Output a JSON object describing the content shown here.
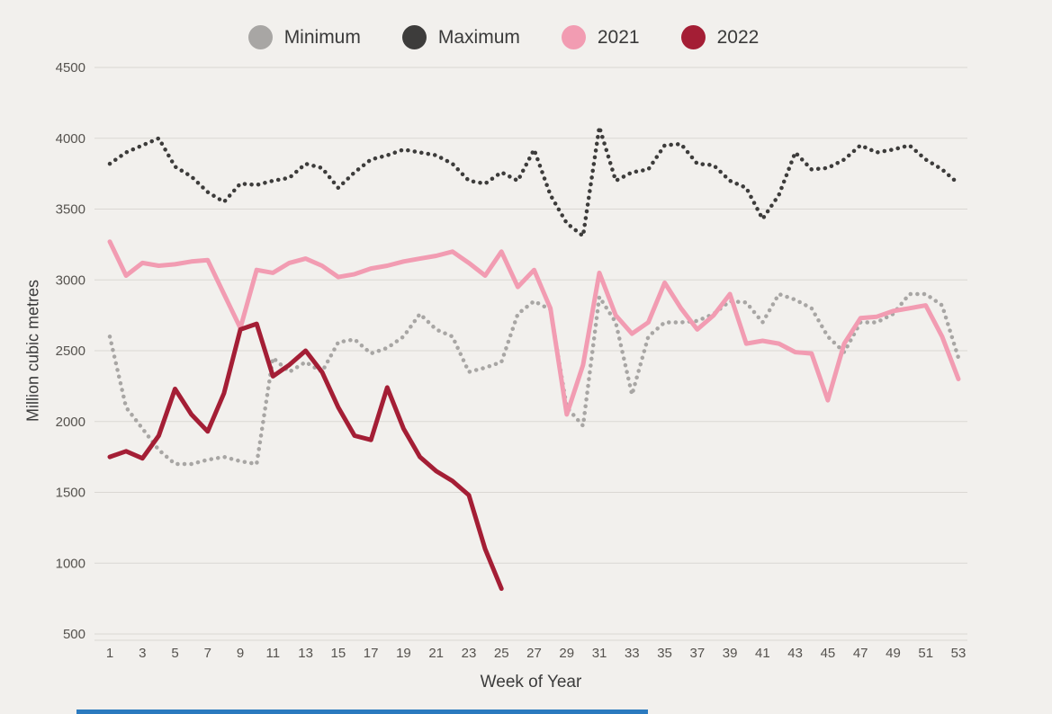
{
  "page": {
    "background": "#f2f0ed",
    "accent_bar_color": "#2b7abf"
  },
  "legend": {
    "items": [
      {
        "label": "Minimum",
        "color": "#a8a6a4"
      },
      {
        "label": "Maximum",
        "color": "#3d3c3b"
      },
      {
        "label": "2021",
        "color": "#f29cb2"
      },
      {
        "label": "2022",
        "color": "#a41e35"
      }
    ]
  },
  "chart_data": {
    "type": "line",
    "title": "",
    "xlabel": "Week of Year",
    "ylabel": "Million cubic metres",
    "ylim": [
      500,
      4500
    ],
    "y_ticks": [
      500,
      1000,
      1500,
      2000,
      2500,
      3000,
      3500,
      4000,
      4500
    ],
    "x_tick_labels": [
      1,
      3,
      5,
      7,
      9,
      11,
      13,
      15,
      17,
      19,
      21,
      23,
      25,
      27,
      29,
      31,
      33,
      35,
      37,
      39,
      41,
      43,
      45,
      47,
      49,
      51,
      53
    ],
    "grid": true,
    "grid_color": "#dad7d3",
    "legend_position": "top",
    "x": [
      1,
      2,
      3,
      4,
      5,
      6,
      7,
      8,
      9,
      10,
      11,
      12,
      13,
      14,
      15,
      16,
      17,
      18,
      19,
      20,
      21,
      22,
      23,
      24,
      25,
      26,
      27,
      28,
      29,
      30,
      31,
      32,
      33,
      34,
      35,
      36,
      37,
      38,
      39,
      40,
      41,
      42,
      43,
      44,
      45,
      46,
      47,
      48,
      49,
      50,
      51,
      52,
      53
    ],
    "series": [
      {
        "name": "Minimum",
        "color": "#a8a6a4",
        "style": "dotted",
        "values": [
          2600,
          2100,
          1950,
          1800,
          1700,
          1700,
          1730,
          1750,
          1720,
          1700,
          2450,
          2350,
          2420,
          2350,
          2560,
          2580,
          2480,
          2520,
          2600,
          2760,
          2650,
          2600,
          2350,
          2380,
          2420,
          2760,
          2850,
          2790,
          2100,
          1970,
          2880,
          2700,
          2190,
          2600,
          2700,
          2700,
          2710,
          2760,
          2850,
          2840,
          2700,
          2900,
          2860,
          2800,
          2600,
          2490,
          2700,
          2700,
          2760,
          2900,
          2900,
          2820,
          2450
        ]
      },
      {
        "name": "Maximum",
        "color": "#3d3c3b",
        "style": "dotted",
        "values": [
          3820,
          3900,
          3950,
          4000,
          3800,
          3730,
          3620,
          3550,
          3680,
          3670,
          3700,
          3720,
          3820,
          3790,
          3650,
          3760,
          3850,
          3880,
          3920,
          3900,
          3880,
          3820,
          3700,
          3680,
          3760,
          3700,
          3920,
          3600,
          3400,
          3310,
          4080,
          3700,
          3760,
          3780,
          3950,
          3960,
          3820,
          3810,
          3700,
          3650,
          3430,
          3600,
          3900,
          3780,
          3790,
          3850,
          3950,
          3900,
          3920,
          3950,
          3850,
          3780,
          3680
        ]
      },
      {
        "name": "2021",
        "color": "#f29cb2",
        "style": "solid",
        "values": [
          3270,
          3030,
          3120,
          3100,
          3110,
          3130,
          3140,
          2900,
          2660,
          3070,
          3050,
          3120,
          3150,
          3100,
          3020,
          3040,
          3080,
          3100,
          3130,
          3150,
          3170,
          3200,
          3120,
          3030,
          3200,
          2950,
          3070,
          2800,
          2050,
          2400,
          3050,
          2750,
          2620,
          2700,
          2980,
          2800,
          2650,
          2750,
          2900,
          2550,
          2570,
          2550,
          2490,
          2480,
          2150,
          2550,
          2730,
          2740,
          2780,
          2800,
          2820,
          2600,
          2300
        ]
      },
      {
        "name": "2022",
        "color": "#a41e35",
        "style": "solid",
        "values": [
          1750,
          1790,
          1740,
          1900,
          2230,
          2050,
          1930,
          2200,
          2650,
          2690,
          2320,
          2400,
          2500,
          2350,
          2100,
          1900,
          1870,
          2240,
          1950,
          1750,
          1650,
          1580,
          1480,
          1100,
          820
        ]
      }
    ]
  }
}
